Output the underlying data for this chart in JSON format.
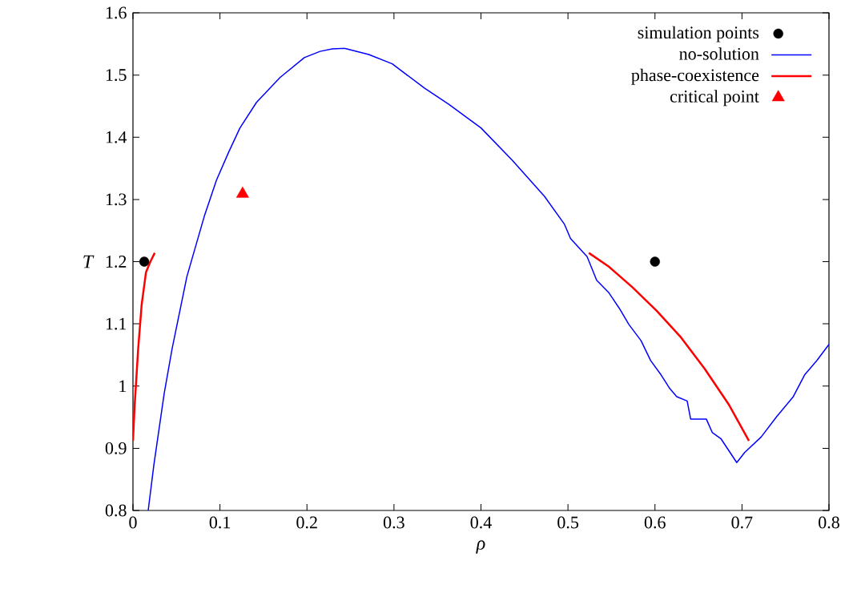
{
  "chart_data": {
    "type": "line",
    "xlabel": "ρ",
    "ylabel": "T",
    "xlim": [
      0,
      0.8
    ],
    "ylim": [
      0.8,
      1.6
    ],
    "xticks": [
      0,
      0.1,
      0.2,
      0.3,
      0.4,
      0.5,
      0.6,
      0.7,
      0.8
    ],
    "yticks": [
      0.8,
      0.9,
      1,
      1.1,
      1.2,
      1.3,
      1.4,
      1.5,
      1.6
    ],
    "grid": false,
    "legend": "top right",
    "series": [
      {
        "name": "simulation points",
        "type": "scatter",
        "marker": "circle",
        "color": "#000000",
        "x": [
          0.013,
          0.6
        ],
        "values": [
          1.2,
          1.2
        ]
      },
      {
        "name": "no-solution",
        "marker": "none",
        "color": "#0000ff",
        "x": [
          0.0175,
          0.024,
          0.036,
          0.045,
          0.062,
          0.082,
          0.096,
          0.11,
          0.123,
          0.142,
          0.169,
          0.197,
          0.215,
          0.229,
          0.243,
          0.271,
          0.298,
          0.335,
          0.363,
          0.4,
          0.436,
          0.473,
          0.496,
          0.503,
          0.522,
          0.533,
          0.547,
          0.559,
          0.57,
          0.584,
          0.595,
          0.607,
          0.617,
          0.625,
          0.637,
          0.641,
          0.648,
          0.659,
          0.666,
          0.676,
          0.694,
          0.703,
          0.722,
          0.74,
          0.759,
          0.772,
          0.786,
          0.8
        ],
        "values": [
          0.8,
          0.873,
          0.989,
          1.06,
          1.176,
          1.273,
          1.331,
          1.376,
          1.415,
          1.456,
          1.496,
          1.528,
          1.538,
          1.542,
          1.543,
          1.533,
          1.518,
          1.479,
          1.453,
          1.415,
          1.363,
          1.305,
          1.26,
          1.237,
          1.208,
          1.17,
          1.15,
          1.125,
          1.099,
          1.073,
          1.041,
          1.018,
          0.996,
          0.983,
          0.976,
          0.947,
          0.947,
          0.947,
          0.925,
          0.915,
          0.877,
          0.893,
          0.918,
          0.951,
          0.983,
          1.018,
          1.041,
          1.067
        ]
      },
      {
        "name": "phase-coexistence",
        "marker": "none",
        "color": "#ff0000",
        "x": [
          0,
          0.002,
          0.004,
          0.006,
          0.01,
          0.015,
          0.02,
          0.025,
          null,
          0.524,
          0.547,
          0.574,
          0.602,
          0.63,
          0.657,
          0.685,
          0.708
        ],
        "values": [
          0.912,
          0.97,
          1.015,
          1.06,
          1.131,
          1.183,
          1.2,
          1.214,
          null,
          1.214,
          1.192,
          1.159,
          1.121,
          1.078,
          1.028,
          0.97,
          0.912
        ]
      },
      {
        "name": "critical point",
        "type": "scatter",
        "marker": "triangle",
        "color": "#ff0000",
        "x": [
          0.126
        ],
        "values": [
          1.309
        ]
      }
    ]
  }
}
